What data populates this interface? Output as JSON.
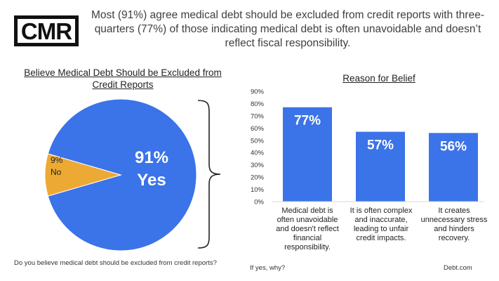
{
  "logo": {
    "text": "CMR"
  },
  "headline": "Most (91%) agree medical debt should be excluded from credit reports with three-quarters (77%) of those indicating medical debt is often unavoidable and doesn’t reflect fiscal responsibility.",
  "colors": {
    "blue": "#3b73e8",
    "gold": "#ecaa35",
    "gridline": "#d9d9d9"
  },
  "chart_data": [
    {
      "type": "pie",
      "title": "Believe Medical Debt Should be Excluded from Credit Reports",
      "slices": [
        {
          "label": "Yes",
          "value": 91,
          "value_label": "91%",
          "color": "#3b73e8"
        },
        {
          "label": "No",
          "value": 9,
          "value_label": "9%",
          "color": "#ecaa35"
        }
      ]
    },
    {
      "type": "bar",
      "title": "Reason for Belief",
      "categories": [
        "Medical debt is often unavoidable and doesn't reflect financial responsibility.",
        "It is often complex and inaccurate, leading to unfair credit impacts.",
        "It creates unnecessary stress and hinders recovery."
      ],
      "values": [
        77,
        57,
        56
      ],
      "value_labels": [
        "77%",
        "57%",
        "56%"
      ],
      "ylim": [
        0,
        90
      ],
      "yticks": [
        "0%",
        "10%",
        "20%",
        "30%",
        "40%",
        "50%",
        "60%",
        "70%",
        "80%",
        "90%"
      ],
      "grid": false
    }
  ],
  "footnotes": {
    "question": "Do you believe medical debt should be excluded from credit reports?",
    "why": "If yes, why?",
    "source": "Debt.com"
  }
}
